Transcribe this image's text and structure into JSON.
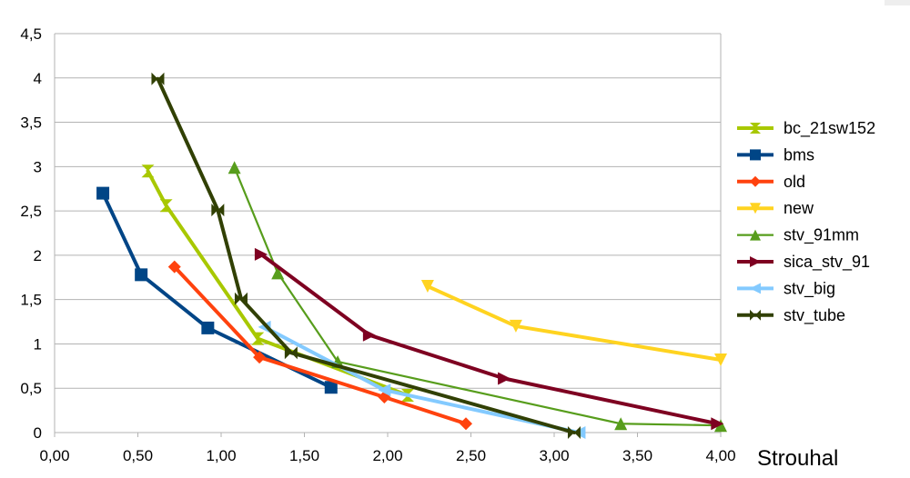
{
  "chart_data": {
    "type": "line",
    "xlabel": "Strouhal",
    "ylabel": "",
    "xlim": [
      0,
      4
    ],
    "ylim": [
      0,
      4.5
    ],
    "x_ticks": [
      "0,00",
      "0,50",
      "1,00",
      "1,50",
      "2,00",
      "2,50",
      "3,00",
      "3,50",
      "4,00"
    ],
    "y_ticks": [
      "0",
      "0,5",
      "1",
      "1,5",
      "2",
      "2,5",
      "3",
      "3,5",
      "4",
      "4,5"
    ],
    "grid": "horizontal",
    "legend_position": "right",
    "series": [
      {
        "name": "bc_21sw152",
        "color": "#a8c800",
        "marker": "hourglass",
        "points": [
          [
            0.56,
            2.95
          ],
          [
            0.67,
            2.56
          ],
          [
            1.22,
            1.06
          ],
          [
            2.12,
            0.42
          ]
        ]
      },
      {
        "name": "bms",
        "color": "#004586",
        "marker": "square",
        "points": [
          [
            0.29,
            2.7
          ],
          [
            0.52,
            1.78
          ],
          [
            0.92,
            1.18
          ],
          [
            1.66,
            0.51
          ]
        ]
      },
      {
        "name": "old",
        "color": "#ff420e",
        "marker": "diamond",
        "points": [
          [
            0.72,
            1.87
          ],
          [
            1.23,
            0.85
          ],
          [
            1.98,
            0.4
          ],
          [
            2.47,
            0.1
          ]
        ]
      },
      {
        "name": "new",
        "color": "#ffd320",
        "marker": "triangle-down",
        "points": [
          [
            2.24,
            1.65
          ],
          [
            2.77,
            1.2
          ],
          [
            4.0,
            0.82
          ]
        ]
      },
      {
        "name": "stv_91mm",
        "color": "#579d1c",
        "marker": "triangle-up",
        "points": [
          [
            1.08,
            2.99
          ],
          [
            1.34,
            1.8
          ],
          [
            1.7,
            0.8
          ],
          [
            3.4,
            0.1
          ],
          [
            4.0,
            0.08
          ]
        ]
      },
      {
        "name": "sica_stv_91",
        "color": "#7e0021",
        "marker": "triangle-right",
        "points": [
          [
            1.24,
            2.01
          ],
          [
            1.89,
            1.1
          ],
          [
            2.7,
            0.61
          ],
          [
            3.98,
            0.1
          ]
        ]
      },
      {
        "name": "stv_big",
        "color": "#83caff",
        "marker": "triangle-left",
        "points": [
          [
            1.26,
            1.19
          ],
          [
            1.98,
            0.48
          ],
          [
            3.15,
            0.0
          ]
        ]
      },
      {
        "name": "stv_tube",
        "color": "#314004",
        "marker": "bowtie",
        "points": [
          [
            0.62,
            3.99
          ],
          [
            0.98,
            2.51
          ],
          [
            1.12,
            1.51
          ],
          [
            1.42,
            0.9
          ],
          [
            3.12,
            0.0
          ]
        ]
      }
    ]
  }
}
